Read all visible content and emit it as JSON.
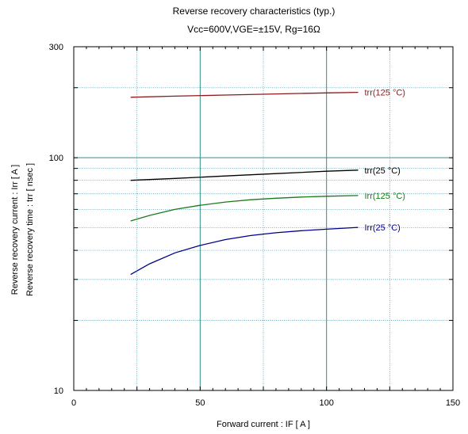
{
  "chart_data": {
    "type": "line",
    "title": "Reverse recovery characteristics  (typ.)",
    "subtitle": "Vcc=600V,VGE=±15V, Rg=16Ω",
    "xlabel": "Forward current  :  IF  [ A ]",
    "ylabel_lines": [
      "Reverse recovery current  :  Irr  [ A ]",
      "Reverse recovery time  :  trr  [ nsec ]"
    ],
    "xlim": [
      0,
      150
    ],
    "ylim": [
      10,
      300
    ],
    "yscale": "log",
    "x_ticks": [
      0,
      50,
      100,
      150
    ],
    "x_tick_labels": [
      "0",
      "50",
      "100",
      "150"
    ],
    "y_ticks": [
      10,
      100,
      300
    ],
    "y_tick_labels": [
      "10",
      "100",
      "300"
    ],
    "grid": true,
    "series": [
      {
        "name": "trr(125 °C)",
        "color": "#8b1a1a",
        "x": [
          22.5,
          40,
          60,
          80,
          100,
          112.5
        ],
        "y": [
          182,
          184,
          186,
          188,
          190,
          191
        ]
      },
      {
        "name": "trr(25 °C)",
        "color": "#000000",
        "x": [
          22.5,
          40,
          60,
          80,
          100,
          112.5
        ],
        "y": [
          80,
          81.5,
          83.5,
          85.5,
          87.5,
          88.5
        ]
      },
      {
        "name": "Irr(125 °C)",
        "color": "#1a7a1a",
        "x": [
          22.5,
          30,
          40,
          50,
          60,
          70,
          80,
          90,
          100,
          112.5
        ],
        "y": [
          53.5,
          56.5,
          60,
          62.5,
          64.5,
          66,
          67,
          67.8,
          68.3,
          68.8
        ]
      },
      {
        "name": "Irr(25 °C)",
        "color": "#00008b",
        "x": [
          22.5,
          30,
          40,
          50,
          60,
          70,
          80,
          90,
          100,
          112.5
        ],
        "y": [
          31.5,
          35,
          39,
          42,
          44.5,
          46.3,
          47.6,
          48.6,
          49.3,
          50.2
        ]
      }
    ]
  }
}
